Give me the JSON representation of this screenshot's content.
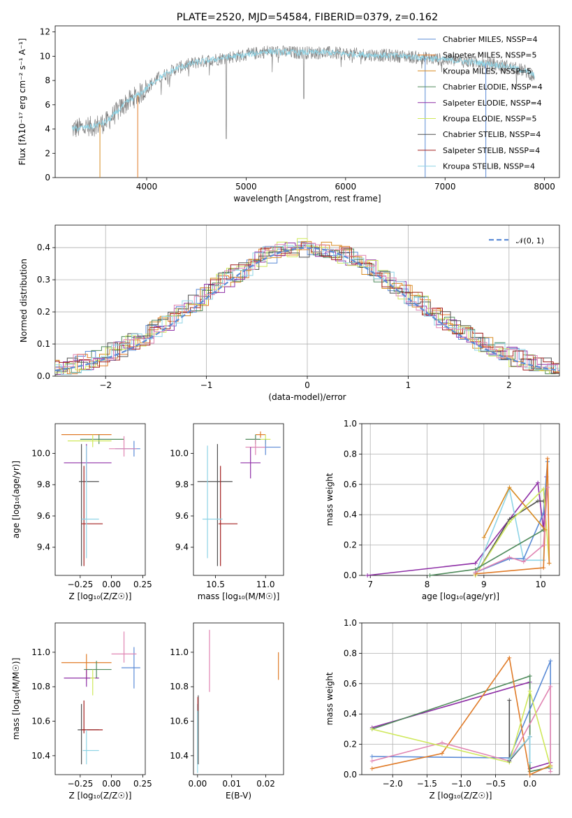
{
  "figure": {
    "title": "PLATE=2520, MJD=54584, FIBERID=0379, z=0.162"
  },
  "colors": {
    "c1": "#5b8bd6",
    "c2": "#e07b28",
    "c3": "#d88b22",
    "c4": "#4f8a5b",
    "c5": "#8e2fa6",
    "c6": "#cfe85a",
    "c7": "#505050",
    "c8": "#a21e1e",
    "c9": "#8fd4e6",
    "c10": "#e084b2",
    "obs": "#808080",
    "normal": "#5b8bd6"
  },
  "chart_data": [
    {
      "id": "spectrum",
      "type": "line",
      "xlabel": "wavelength [Angstrom, rest frame]",
      "ylabel": "Flux [fλ10⁻¹⁷ erg cm⁻² s⁻¹ A⁻¹]",
      "xlim": [
        3080,
        8150
      ],
      "ylim": [
        0,
        12.5
      ],
      "xticks": [
        "4000",
        "5000",
        "6000",
        "7000",
        "8000"
      ],
      "yticks": [
        "0",
        "2",
        "4",
        "6",
        "8",
        "10",
        "12"
      ],
      "legend": [
        "Chabrier MILES, NSSP=4",
        "Salpeter MILES, NSSP=5",
        "Kroupa MILES, NSSP=5",
        "Chabrier ELODIE, NSSP=4",
        "Salpeter ELODIE, NSSP=4",
        "Kroupa ELODIE, NSSP=5",
        "Chabrier STELIB, NSSP=4",
        "Salpeter STELIB, NSSP=4",
        "Kroupa STELIB, NSSP=4"
      ],
      "continuum": [
        [
          3250,
          4.0
        ],
        [
          3450,
          4.2
        ],
        [
          3600,
          4.6
        ],
        [
          3800,
          6.2
        ],
        [
          3950,
          7.0
        ],
        [
          4100,
          8.1
        ],
        [
          4300,
          9.0
        ],
        [
          4500,
          9.5
        ],
        [
          4800,
          9.9
        ],
        [
          5000,
          10.1
        ],
        [
          5200,
          10.4
        ],
        [
          5500,
          10.3
        ],
        [
          5800,
          10.3
        ],
        [
          6000,
          10.2
        ],
        [
          6300,
          10.1
        ],
        [
          6600,
          10.0
        ],
        [
          7000,
          9.7
        ],
        [
          7300,
          9.5
        ],
        [
          7600,
          9.2
        ],
        [
          7800,
          8.8
        ],
        [
          7900,
          8.4
        ]
      ],
      "dropouts": [
        [
          3530,
          2
        ],
        [
          3910,
          1
        ],
        [
          6800,
          0
        ],
        [
          7410,
          0
        ]
      ]
    },
    {
      "id": "residuals",
      "type": "bar",
      "xlabel": "(data-model)/error",
      "ylabel": "Normed distribution",
      "xlim": [
        -2.5,
        2.5
      ],
      "ylim": [
        0,
        0.47
      ],
      "xticks": [
        "−2",
        "−1",
        "0",
        "1",
        "2"
      ],
      "yticks": [
        "0.0",
        "0.1",
        "0.2",
        "0.3",
        "0.4"
      ],
      "legend_label": "𝒩(0, 1)"
    },
    {
      "id": "age_Z",
      "type": "scatter",
      "xlabel": "Z [log₁₀(Z/Z☉)]",
      "ylabel": "age  [log₁₀(age/yr)]",
      "xlim": [
        -0.45,
        0.27
      ],
      "ylim": [
        9.22,
        10.19
      ],
      "xticks": [
        "−0.25",
        "0.00",
        "0.25"
      ],
      "yticks": [
        "9.4",
        "9.6",
        "9.8",
        "10.0"
      ]
    },
    {
      "id": "age_mass",
      "type": "scatter",
      "xlabel": "mass [log₁₀(M/M☉)]",
      "ylabel": "",
      "xlim": [
        10.28,
        11.18
      ],
      "ylim": [
        9.22,
        10.19
      ],
      "xticks": [
        "10.5",
        "11.0"
      ],
      "yticks": [
        "9.4",
        "9.6",
        "9.8",
        "10.0"
      ]
    },
    {
      "id": "weight_age",
      "type": "line",
      "xlabel": "age  [log₁₀(age/yr)]",
      "ylabel": "mass weight",
      "xlim": [
        6.85,
        10.33
      ],
      "ylim": [
        0,
        1.0
      ],
      "xticks": [
        "7",
        "8",
        "9",
        "10"
      ],
      "yticks": [
        "0.0",
        "0.2",
        "0.4",
        "0.6",
        "0.8",
        "1.0"
      ]
    },
    {
      "id": "mass_Z",
      "type": "scatter",
      "xlabel": "Z [log₁₀(Z/Z☉)]",
      "ylabel": "mass [log₁₀(M/M☉)]",
      "xlim": [
        -0.45,
        0.27
      ],
      "ylim": [
        10.29,
        11.17
      ],
      "xticks": [
        "−0.25",
        "0.00",
        "0.25"
      ],
      "yticks": [
        "10.4",
        "10.6",
        "10.8",
        "11.0"
      ]
    },
    {
      "id": "mass_EBV",
      "type": "scatter",
      "xlabel": "E(B-V)",
      "ylabel": "",
      "xlim": [
        -0.0012,
        0.0252
      ],
      "ylim": [
        10.29,
        11.17
      ],
      "xticks": [
        "0.00",
        "0.01",
        "0.02"
      ],
      "yticks": [
        "10.4",
        "10.6",
        "10.8",
        "11.0"
      ]
    },
    {
      "id": "weight_Z",
      "type": "line",
      "xlabel": "Z [log₁₀(Z/Z☉)]",
      "ylabel": "mass weight",
      "xlim": [
        -2.45,
        0.43
      ],
      "ylim": [
        0,
        1.0
      ],
      "xticks": [
        "−2.0",
        "−1.5",
        "−1.0",
        "−0.5",
        "0.0"
      ],
      "yticks": [
        "0.0",
        "0.2",
        "0.4",
        "0.6",
        "0.8",
        "1.0"
      ]
    }
  ]
}
